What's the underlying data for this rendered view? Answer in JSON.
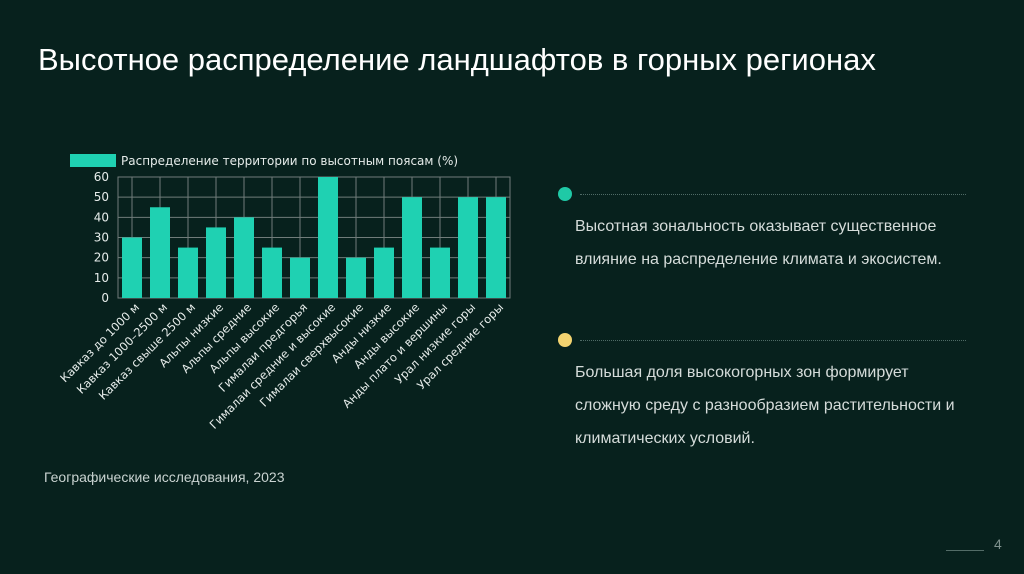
{
  "slide": {
    "title": "Высотное распределение ландшафтов в горных регионах",
    "source": "Географические исследования, 2023",
    "page_number": "4"
  },
  "points": [
    {
      "text": "Высотная зональность оказывает существенное влияние на распределение климата и экосистем.",
      "dot_color": "#1fc9a6"
    },
    {
      "text": "Большая доля высокогорных зон формирует сложную среду с разнообразием растительности и климатических условий.",
      "dot_color": "#f3d370"
    }
  ],
  "colors": {
    "background": "#07211d",
    "bar": "#1fd1b2",
    "grid": "#707c7a"
  },
  "chart_data": {
    "type": "bar",
    "legend": "Распределение территории по высотным поясам (%)",
    "legend_position": "top-left",
    "categories": [
      "Кавказ до 1000 м",
      "Кавказ 1000–2500 м",
      "Кавказ свыше 2500 м",
      "Альпы низкие",
      "Альпы средние",
      "Альпы высокие",
      "Гималаи предгорья",
      "Гималаи средние и высокие",
      "Гималаи сверхвысокие",
      "Анды низкие",
      "Анды высокие",
      "Анды плато и вершины",
      "Урал низкие горы",
      "Урал средние горы"
    ],
    "values": [
      30,
      45,
      25,
      35,
      40,
      25,
      20,
      60,
      20,
      25,
      50,
      25,
      50,
      50
    ],
    "yticks": [
      0,
      10,
      20,
      30,
      40,
      50,
      60
    ],
    "ylim": [
      0,
      60
    ],
    "grid": true
  }
}
